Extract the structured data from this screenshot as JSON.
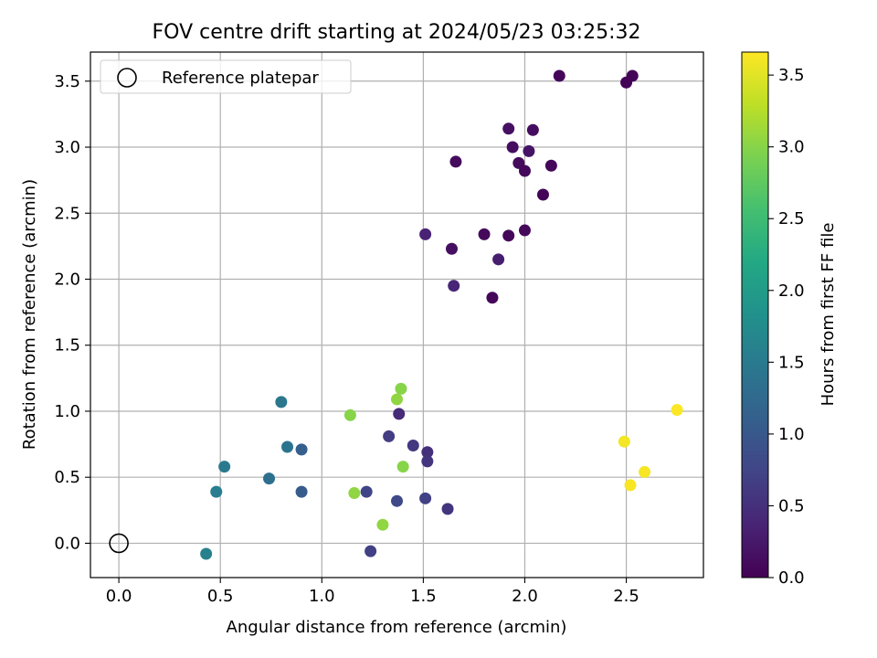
{
  "chart_data": {
    "type": "scatter",
    "title": "FOV centre drift starting at 2024/05/23 03:25:32",
    "xlabel": "Angular distance from reference (arcmin)",
    "ylabel": "Rotation from reference (arcmin)",
    "xlim": [
      -0.14,
      2.88
    ],
    "ylim": [
      -0.26,
      3.72
    ],
    "grid": true,
    "legend_location": "top-left",
    "x_ticks": [
      "0.0",
      "0.5",
      "1.0",
      "1.5",
      "2.0",
      "2.5"
    ],
    "y_ticks": [
      "0.0",
      "0.5",
      "1.0",
      "1.5",
      "2.0",
      "2.5",
      "3.0",
      "3.5"
    ],
    "reference": {
      "label": "Reference platepar",
      "x": 0.0,
      "y": 0.0,
      "marker": "hollow-circle"
    },
    "colorbar": {
      "label": "Hours from first FF file",
      "colormap": "viridis",
      "range": [
        0.0,
        3.66
      ],
      "ticks": [
        "0.0",
        "0.5",
        "1.0",
        "1.5",
        "2.0",
        "2.5",
        "3.0",
        "3.5"
      ]
    },
    "points": [
      {
        "x": 2.17,
        "y": 3.54,
        "c": 0.05
      },
      {
        "x": 2.53,
        "y": 3.54,
        "c": 0.03
      },
      {
        "x": 2.5,
        "y": 3.49,
        "c": 0.02
      },
      {
        "x": 1.92,
        "y": 3.14,
        "c": 0.15
      },
      {
        "x": 2.04,
        "y": 3.13,
        "c": 0.13
      },
      {
        "x": 1.94,
        "y": 3.0,
        "c": 0.12
      },
      {
        "x": 2.02,
        "y": 2.97,
        "c": 0.2
      },
      {
        "x": 1.66,
        "y": 2.89,
        "c": 0.1
      },
      {
        "x": 1.97,
        "y": 2.88,
        "c": 0.1
      },
      {
        "x": 2.13,
        "y": 2.86,
        "c": 0.06
      },
      {
        "x": 2.0,
        "y": 2.82,
        "c": 0.07
      },
      {
        "x": 2.09,
        "y": 2.64,
        "c": 0.04
      },
      {
        "x": 2.0,
        "y": 2.37,
        "c": 0.08
      },
      {
        "x": 1.51,
        "y": 2.34,
        "c": 0.35
      },
      {
        "x": 1.8,
        "y": 2.34,
        "c": 0.08
      },
      {
        "x": 1.92,
        "y": 2.33,
        "c": 0.06
      },
      {
        "x": 1.64,
        "y": 2.23,
        "c": 0.15
      },
      {
        "x": 1.87,
        "y": 2.15,
        "c": 0.3
      },
      {
        "x": 1.65,
        "y": 1.95,
        "c": 0.38
      },
      {
        "x": 1.84,
        "y": 1.86,
        "c": 0.06
      },
      {
        "x": 1.38,
        "y": 0.98,
        "c": 0.45
      },
      {
        "x": 1.33,
        "y": 0.81,
        "c": 0.65
      },
      {
        "x": 1.45,
        "y": 0.74,
        "c": 0.6
      },
      {
        "x": 1.52,
        "y": 0.69,
        "c": 0.5
      },
      {
        "x": 1.52,
        "y": 0.62,
        "c": 0.55
      },
      {
        "x": 1.22,
        "y": 0.39,
        "c": 0.75
      },
      {
        "x": 1.37,
        "y": 0.32,
        "c": 0.8
      },
      {
        "x": 1.51,
        "y": 0.34,
        "c": 0.7
      },
      {
        "x": 1.62,
        "y": 0.26,
        "c": 0.55
      },
      {
        "x": 1.24,
        "y": -0.06,
        "c": 0.7
      },
      {
        "x": 0.9,
        "y": 0.71,
        "c": 1.1
      },
      {
        "x": 0.9,
        "y": 0.39,
        "c": 1.05
      },
      {
        "x": 0.8,
        "y": 1.07,
        "c": 1.45
      },
      {
        "x": 0.83,
        "y": 0.73,
        "c": 1.4
      },
      {
        "x": 0.74,
        "y": 0.49,
        "c": 1.35
      },
      {
        "x": 0.52,
        "y": 0.58,
        "c": 1.5
      },
      {
        "x": 0.48,
        "y": 0.39,
        "c": 1.55
      },
      {
        "x": 0.43,
        "y": -0.08,
        "c": 1.6
      },
      {
        "x": 1.39,
        "y": 1.17,
        "c": 3.0
      },
      {
        "x": 1.37,
        "y": 1.09,
        "c": 3.05
      },
      {
        "x": 1.14,
        "y": 0.97,
        "c": 3.0
      },
      {
        "x": 1.4,
        "y": 0.58,
        "c": 3.0
      },
      {
        "x": 1.16,
        "y": 0.38,
        "c": 3.05
      },
      {
        "x": 1.3,
        "y": 0.14,
        "c": 3.05
      },
      {
        "x": 2.75,
        "y": 1.01,
        "c": 3.65
      },
      {
        "x": 2.49,
        "y": 0.77,
        "c": 3.6
      },
      {
        "x": 2.59,
        "y": 0.54,
        "c": 3.62
      },
      {
        "x": 2.52,
        "y": 0.44,
        "c": 3.63
      }
    ]
  }
}
